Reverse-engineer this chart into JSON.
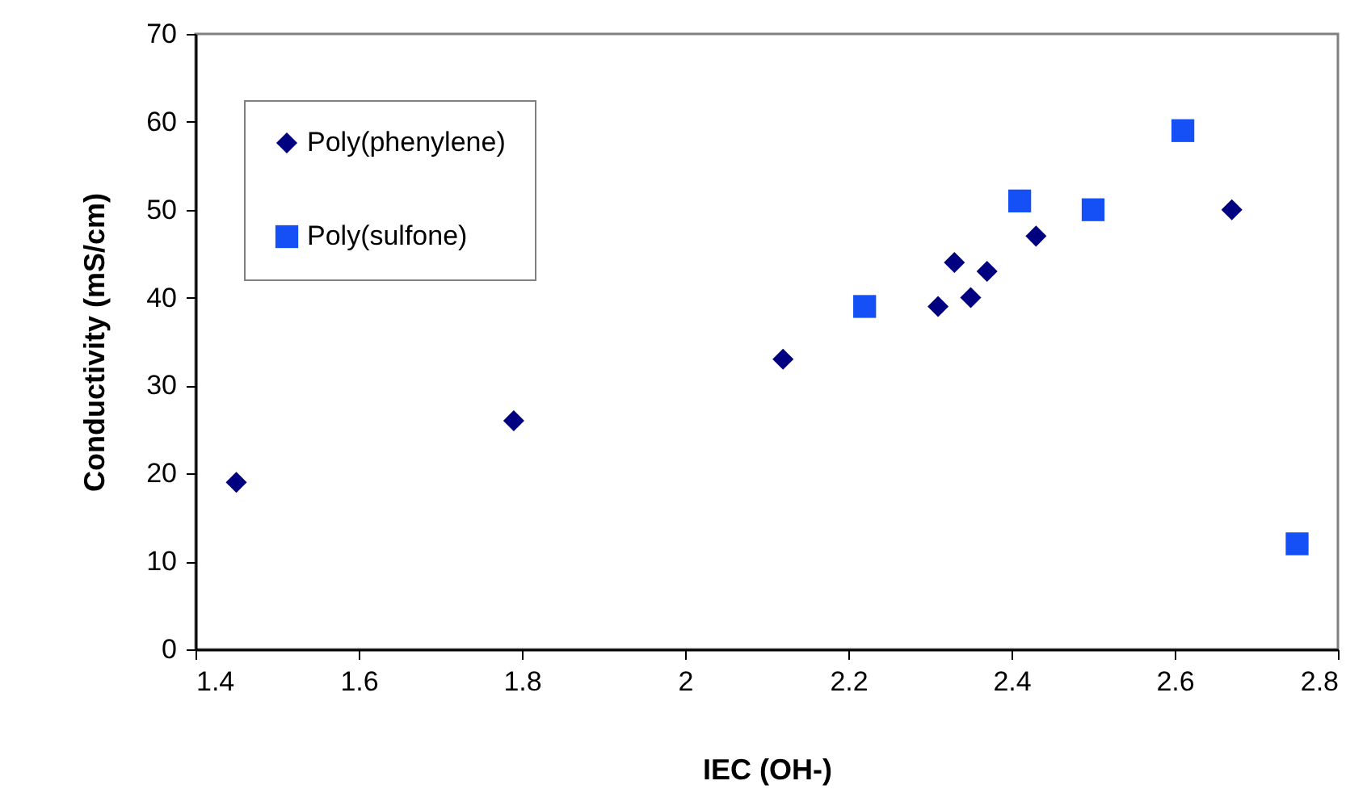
{
  "chart_data": {
    "type": "scatter",
    "xlabel": "IEC (OH-)",
    "ylabel": "Conductivity (mS/cm)",
    "xlim": [
      1.4,
      2.8
    ],
    "xticks": [
      1.4,
      1.6,
      1.8,
      2,
      2.2,
      2.4,
      2.6,
      2.8
    ],
    "ylim": [
      0,
      70
    ],
    "yticks": [
      0,
      10,
      20,
      30,
      40,
      50,
      60,
      70
    ],
    "grid": false,
    "legend": "top left",
    "series": [
      {
        "name": "Poly(phenylene)",
        "color": "#000080",
        "marker": "diamond",
        "x": [
          1.45,
          1.79,
          2.12,
          2.31,
          2.33,
          2.35,
          2.37,
          2.43,
          2.67
        ],
        "values": [
          19,
          26,
          33,
          39,
          44,
          40,
          43,
          47,
          50
        ]
      },
      {
        "name": "Poly(sulfone)",
        "color": "#1450f5",
        "marker": "square",
        "x": [
          2.22,
          2.41,
          2.5,
          2.61,
          2.75
        ],
        "values": [
          39,
          51,
          50,
          59,
          12
        ]
      }
    ]
  }
}
